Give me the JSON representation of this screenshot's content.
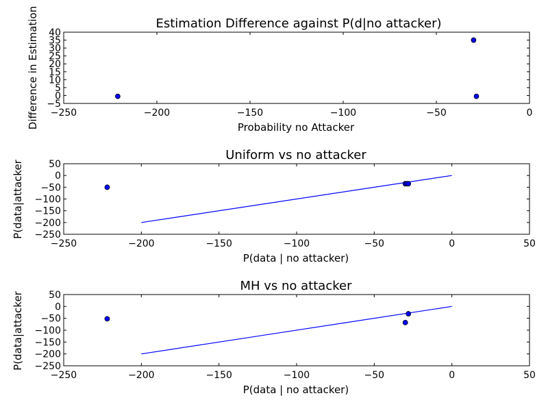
{
  "figure": {
    "background": "#ffffff",
    "marker_color": "#0000ff",
    "line_color": "#0000ff"
  },
  "chart_data": [
    {
      "type": "scatter",
      "title": "Estimation Difference against P(d|no attacker)",
      "xlabel": "Probability no Attacker",
      "ylabel": "Difference in Estimation",
      "xlim": [
        -250,
        0
      ],
      "ylim": [
        -5,
        40
      ],
      "xticks": [
        -250,
        -200,
        -150,
        -100,
        -50,
        0
      ],
      "yticks": [
        -5,
        0,
        5,
        10,
        15,
        20,
        25,
        30,
        35,
        40
      ],
      "grid": false,
      "points": [
        {
          "x": -221,
          "y": -0.5
        },
        {
          "x": -30,
          "y": 35
        },
        {
          "x": -28.5,
          "y": -0.5
        }
      ],
      "lines": []
    },
    {
      "type": "scatter",
      "title": "Uniform vs no attacker",
      "xlabel": "P(data | no attacker)",
      "ylabel": "P(data|attacker",
      "xlim": [
        -250,
        50
      ],
      "ylim": [
        -250,
        50
      ],
      "xticks": [
        -250,
        -200,
        -150,
        -100,
        -50,
        0,
        50
      ],
      "yticks": [
        -250,
        -200,
        -150,
        -100,
        -50,
        0,
        50
      ],
      "grid": false,
      "points": [
        {
          "x": -222,
          "y": -50
        },
        {
          "x": -30,
          "y": -35
        },
        {
          "x": -29,
          "y": -35
        },
        {
          "x": -28,
          "y": -35
        }
      ],
      "lines": [
        {
          "x": [
            -200,
            0
          ],
          "y": [
            -200,
            0
          ]
        }
      ]
    },
    {
      "type": "scatter",
      "title": "MH vs no attacker",
      "xlabel": "P(data | no attacker)",
      "ylabel": "P(data|attacker",
      "xlim": [
        -250,
        50
      ],
      "ylim": [
        -250,
        50
      ],
      "xticks": [
        -250,
        -200,
        -150,
        -100,
        -50,
        0,
        50
      ],
      "yticks": [
        -250,
        -200,
        -150,
        -100,
        -50,
        0,
        50
      ],
      "grid": false,
      "points": [
        {
          "x": -222,
          "y": -52
        },
        {
          "x": -28,
          "y": -31
        },
        {
          "x": -30,
          "y": -68
        }
      ],
      "lines": [
        {
          "x": [
            -200,
            0
          ],
          "y": [
            -200,
            0
          ]
        }
      ]
    }
  ]
}
